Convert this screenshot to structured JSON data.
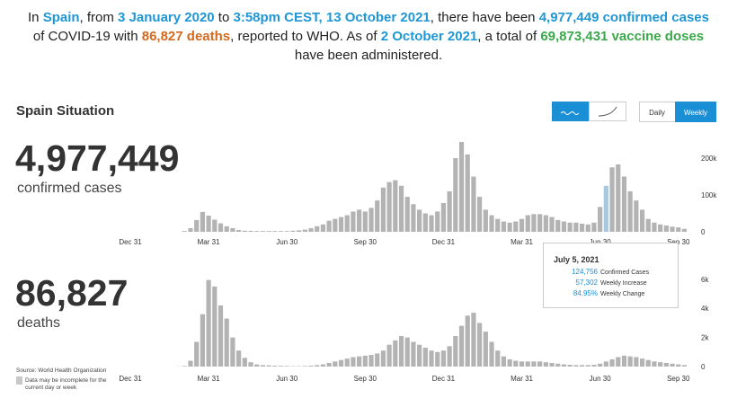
{
  "header": {
    "segments": [
      "In ",
      "Spain",
      ", from ",
      "3 January 2020",
      " to ",
      "3:58pm CEST, 13 October 2021",
      ", there have been ",
      "4,977,449 confirmed cases",
      "of COVID-19 with ",
      "86,827 deaths",
      ", reported to WHO. As of ",
      "2 October 2021",
      ", a total of ",
      "69,873,431 vaccine doses",
      "have been administered."
    ]
  },
  "situation": {
    "title": "Spain Situation",
    "cases": "4,977,449",
    "cases_label": "confirmed cases",
    "deaths": "86,827",
    "deaths_label": "deaths",
    "buttons": [
      "Daily",
      "Weekly"
    ],
    "source": "Source: World Health Organization",
    "note": [
      "Data may be incomplete for the",
      "current day or week"
    ]
  },
  "chart_data": [
    {
      "type": "bar",
      "color": "#b3b3b3",
      "highlight": 79,
      "highlight_color": "#a7c7dd",
      "x": [
        8,
        9,
        10,
        11,
        12,
        13,
        14,
        15,
        16,
        17,
        18,
        19,
        20,
        21,
        22,
        23,
        24,
        25,
        26,
        27,
        28,
        29,
        30,
        31,
        32,
        33,
        34,
        35,
        36,
        37,
        38,
        39,
        40,
        41,
        42,
        43,
        44,
        45,
        46,
        47,
        48,
        49,
        50,
        51,
        52,
        53,
        54,
        55,
        56,
        57,
        58,
        59,
        60,
        61,
        62,
        63,
        64,
        65,
        66,
        67,
        68,
        69,
        70,
        71,
        72,
        73,
        74,
        75,
        76,
        77,
        78,
        79,
        80,
        81,
        82,
        83,
        84,
        85,
        86,
        87,
        88,
        89,
        90,
        91,
        92
      ],
      "values": [
        100,
        2000,
        10000,
        32000,
        54000,
        44000,
        33000,
        23000,
        15000,
        10000,
        5000,
        3000,
        2500,
        2000,
        2000,
        2000,
        2000,
        2000,
        2000,
        3000,
        4000,
        6000,
        10000,
        15000,
        20000,
        30000,
        35000,
        40000,
        45000,
        55000,
        60000,
        55000,
        65000,
        85000,
        120000,
        135000,
        140000,
        125000,
        95000,
        75000,
        60000,
        50000,
        45000,
        55000,
        78000,
        110000,
        200000,
        244000,
        210000,
        150000,
        95000,
        60000,
        45000,
        35000,
        28000,
        25000,
        28000,
        35000,
        45000,
        48000,
        48000,
        45000,
        40000,
        32000,
        28000,
        25000,
        25000,
        22000,
        20000,
        25000,
        67454,
        124756,
        175000,
        183000,
        150000,
        110000,
        85000,
        60000,
        35000,
        25000,
        20000,
        17000,
        14000,
        12000,
        8000
      ],
      "xlim": [
        0,
        93.5
      ],
      "xticks": [
        {
          "value": 0,
          "label": "Dec 31"
        },
        {
          "value": 13,
          "label": "Mar 31"
        },
        {
          "value": 26,
          "label": "Jun 30"
        },
        {
          "value": 39,
          "label": "Sep 30"
        },
        {
          "value": 52,
          "label": "Dec 31"
        },
        {
          "value": 65,
          "label": "Mar 31"
        },
        {
          "value": 78,
          "label": "Jun 30"
        },
        {
          "value": 91,
          "label": "Sep 30"
        }
      ],
      "ylim": [
        0,
        250000
      ],
      "yticks": [
        0,
        {
          "value": 100000,
          "label": "100k"
        },
        {
          "value": 200000,
          "label": "200k"
        }
      ],
      "tooltip": {
        "date": "July 5, 2021",
        "lines": [
          [
            "124,756",
            "Confirmed Cases"
          ],
          [
            "57,302",
            "Weekly Increase"
          ],
          [
            "84.95%",
            "Weekly Change"
          ]
        ]
      }
    },
    {
      "type": "bar",
      "color": "#b3b3b3",
      "x": [
        8,
        9,
        10,
        11,
        12,
        13,
        14,
        15,
        16,
        17,
        18,
        19,
        20,
        21,
        22,
        23,
        24,
        25,
        26,
        27,
        28,
        29,
        30,
        31,
        32,
        33,
        34,
        35,
        36,
        37,
        38,
        39,
        40,
        41,
        42,
        43,
        44,
        45,
        46,
        47,
        48,
        49,
        50,
        51,
        52,
        53,
        54,
        55,
        56,
        57,
        58,
        59,
        60,
        61,
        62,
        63,
        64,
        65,
        66,
        67,
        68,
        69,
        70,
        71,
        72,
        73,
        74,
        75,
        76,
        77,
        78,
        79,
        80,
        81,
        82,
        83,
        84,
        85,
        86,
        87,
        88,
        89,
        90,
        91,
        92
      ],
      "values": [
        10,
        40,
        400,
        1700,
        3600,
        5950,
        5500,
        4200,
        3300,
        2000,
        1100,
        600,
        300,
        150,
        100,
        80,
        60,
        50,
        40,
        30,
        30,
        40,
        60,
        100,
        150,
        250,
        350,
        450,
        550,
        650,
        700,
        750,
        800,
        900,
        1100,
        1500,
        1800,
        2100,
        2000,
        1700,
        1500,
        1300,
        1100,
        1000,
        1100,
        1400,
        2100,
        2800,
        3500,
        3700,
        3000,
        2400,
        1700,
        1100,
        700,
        500,
        400,
        350,
        350,
        350,
        350,
        300,
        250,
        200,
        150,
        120,
        100,
        100,
        100,
        120,
        200,
        350,
        500,
        650,
        750,
        700,
        650,
        550,
        450,
        350,
        300,
        250,
        200,
        150,
        100
      ],
      "xlim": [
        0,
        93.5
      ],
      "xticks": [
        {
          "value": 0,
          "label": "Dec 31"
        },
        {
          "value": 13,
          "label": "Mar 31"
        },
        {
          "value": 26,
          "label": "Jun 30"
        },
        {
          "value": 39,
          "label": "Sep 30"
        },
        {
          "value": 52,
          "label": "Dec 31"
        },
        {
          "value": 65,
          "label": "Mar 31"
        },
        {
          "value": 78,
          "label": "Jun 30"
        },
        {
          "value": 91,
          "label": "Sep 30"
        }
      ],
      "ylim": [
        0,
        6200
      ],
      "yticks": [
        0,
        {
          "value": 2000,
          "label": "2k"
        },
        {
          "value": 4000,
          "label": "4k"
        },
        {
          "value": 6000,
          "label": "6k"
        }
      ]
    }
  ]
}
